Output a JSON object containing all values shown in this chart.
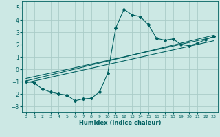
{
  "xlabel": "Humidex (Indice chaleur)",
  "ylabel": "",
  "bg_color": "#cce8e4",
  "grid_color": "#aaccc8",
  "line_color": "#006060",
  "xlim": [
    -0.5,
    23.5
  ],
  "ylim": [
    -3.5,
    5.5
  ],
  "yticks": [
    -3,
    -2,
    -1,
    0,
    1,
    2,
    3,
    4,
    5
  ],
  "xticks": [
    0,
    1,
    2,
    3,
    4,
    5,
    6,
    7,
    8,
    9,
    10,
    11,
    12,
    13,
    14,
    15,
    16,
    17,
    18,
    19,
    20,
    21,
    22,
    23
  ],
  "line1_x": [
    0,
    1,
    2,
    3,
    4,
    5,
    6,
    7,
    8,
    9,
    10,
    11,
    12,
    13,
    14,
    15,
    16,
    17,
    18,
    19,
    20,
    21,
    22,
    23
  ],
  "line1_y": [
    -1.0,
    -1.1,
    -1.6,
    -1.85,
    -2.0,
    -2.1,
    -2.55,
    -2.4,
    -2.35,
    -1.85,
    -0.35,
    3.35,
    4.85,
    4.4,
    4.25,
    3.6,
    2.5,
    2.35,
    2.45,
    2.0,
    1.9,
    2.1,
    2.4,
    2.65
  ],
  "line2_x": [
    0,
    23
  ],
  "line2_y": [
    -0.95,
    2.75
  ],
  "line3_x": [
    0,
    23
  ],
  "line3_y": [
    -1.1,
    2.3
  ],
  "line4_x": [
    0,
    23
  ],
  "line4_y": [
    -0.75,
    2.6
  ],
  "marker": "D",
  "markersize": 2,
  "linewidth": 0.8
}
